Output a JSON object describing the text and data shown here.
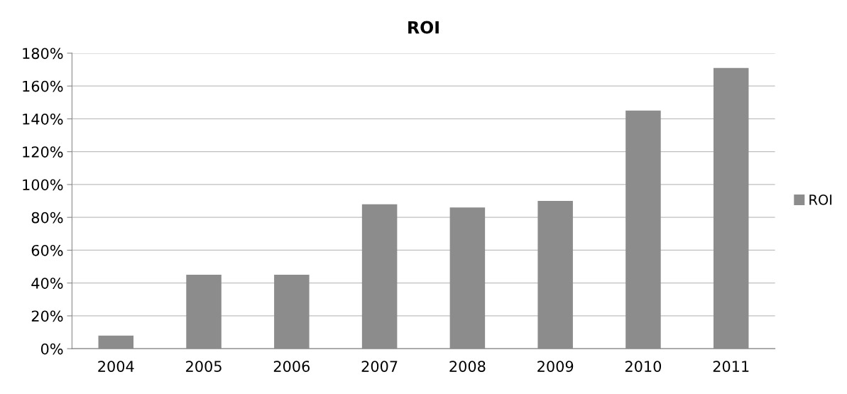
{
  "chart_data": {
    "type": "bar",
    "title": "ROI",
    "categories": [
      "2004",
      "2005",
      "2006",
      "2007",
      "2008",
      "2009",
      "2010",
      "2011"
    ],
    "series": [
      {
        "name": "ROI",
        "color": "#8c8c8c",
        "values": [
          8,
          45,
          45,
          88,
          86,
          90,
          145,
          171
        ]
      }
    ],
    "ylim": [
      0,
      180
    ],
    "yticks": [
      {
        "value": 0,
        "label": "0%"
      },
      {
        "value": 20,
        "label": "20%"
      },
      {
        "value": 40,
        "label": "40%"
      },
      {
        "value": 60,
        "label": "60%"
      },
      {
        "value": 80,
        "label": "80%"
      },
      {
        "value": 100,
        "label": "100%"
      },
      {
        "value": 120,
        "label": "120%"
      },
      {
        "value": 140,
        "label": "140%"
      },
      {
        "value": 160,
        "label": "160%"
      },
      {
        "value": 180,
        "label": "180%"
      }
    ],
    "grid": "y",
    "legend": "right"
  }
}
